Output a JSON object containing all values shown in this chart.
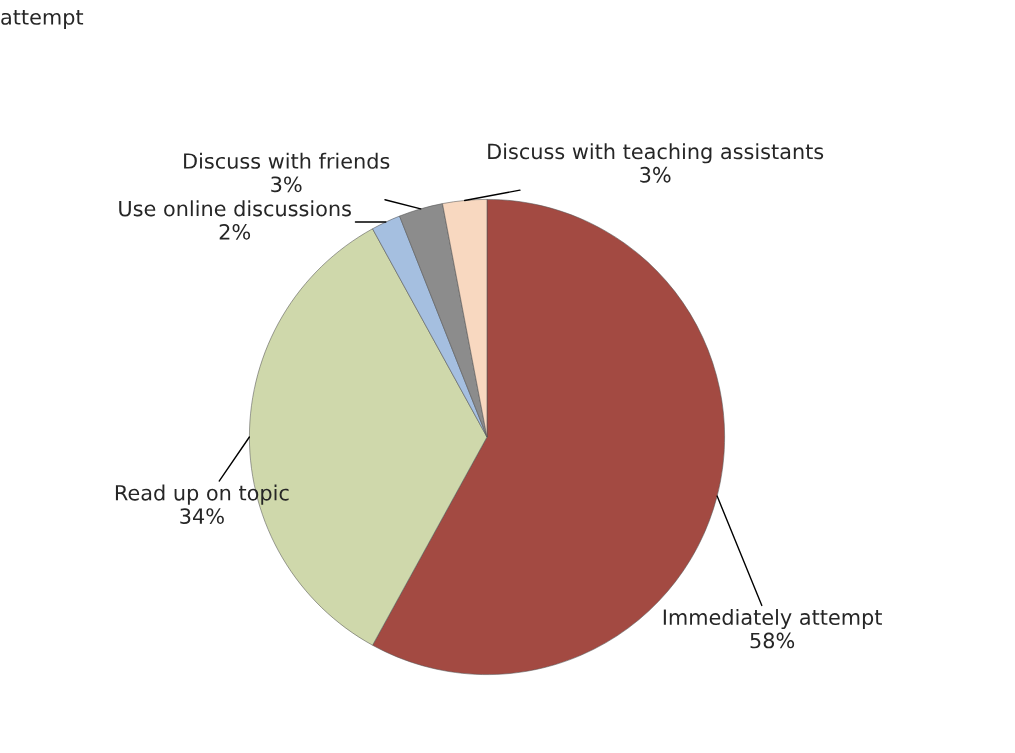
{
  "chart_data": {
    "type": "pie",
    "categories": [
      "Immediately attempt",
      "Read up on topic",
      "Use online discussions",
      "Discuss with friends",
      "Discuss with teaching assistants"
    ],
    "values": [
      58,
      34,
      2,
      3,
      3
    ],
    "colors": [
      "#a34a42",
      "#cfd8ab",
      "#a5bfe0",
      "#8c8c8c",
      "#f8d8c0"
    ],
    "value_labels": [
      "58%",
      "34%",
      "2%",
      "3%",
      "3%"
    ],
    "annotations": [
      "attempt"
    ],
    "legend": false
  }
}
